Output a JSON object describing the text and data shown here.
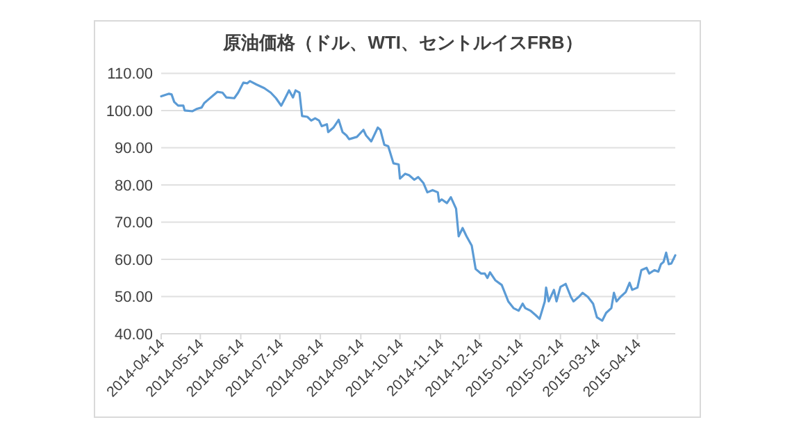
{
  "chart_data": {
    "type": "line",
    "title": "原油価格（ドル、WTI、セントルイスFRB）",
    "x": [
      "2014-04-14",
      "2014-04-20",
      "2014-04-22",
      "2014-04-24",
      "2014-04-27",
      "2014-05-01",
      "2014-05-02",
      "2014-05-08",
      "2014-05-11",
      "2014-05-15",
      "2014-05-17",
      "2014-05-20",
      "2014-05-24",
      "2014-05-27",
      "2014-05-31",
      "2014-06-03",
      "2014-06-09",
      "2014-06-12",
      "2014-06-16",
      "2014-06-19",
      "2014-06-21",
      "2014-06-26",
      "2014-07-02",
      "2014-07-07",
      "2014-07-11",
      "2014-07-15",
      "2014-07-18",
      "2014-07-21",
      "2014-07-24",
      "2014-07-26",
      "2014-07-29",
      "2014-07-31",
      "2014-08-04",
      "2014-08-07",
      "2014-08-10",
      "2014-08-13",
      "2014-08-15",
      "2014-08-19",
      "2014-08-20",
      "2014-08-24",
      "2014-08-28",
      "2014-08-31",
      "2014-09-03",
      "2014-09-05",
      "2014-09-11",
      "2014-09-16",
      "2014-09-18",
      "2014-09-22",
      "2014-09-27",
      "2014-09-29",
      "2014-10-02",
      "2014-10-05",
      "2014-10-09",
      "2014-10-13",
      "2014-10-14",
      "2014-10-18",
      "2014-10-21",
      "2014-10-25",
      "2014-10-28",
      "2014-11-01",
      "2014-11-04",
      "2014-11-08",
      "2014-11-12",
      "2014-11-13",
      "2014-11-15",
      "2014-11-19",
      "2014-11-22",
      "2014-11-26",
      "2014-11-28",
      "2014-12-01",
      "2014-12-04",
      "2014-12-08",
      "2014-12-11",
      "2014-12-15",
      "2014-12-18",
      "2014-12-20",
      "2014-12-22",
      "2014-12-26",
      "2014-12-31",
      "2015-01-05",
      "2015-01-09",
      "2015-01-13",
      "2015-01-16",
      "2015-01-18",
      "2015-01-22",
      "2015-01-26",
      "2015-01-29",
      "2015-02-02",
      "2015-02-03",
      "2015-02-05",
      "2015-02-09",
      "2015-02-11",
      "2015-02-14",
      "2015-02-18",
      "2015-02-22",
      "2015-02-24",
      "2015-02-28",
      "2015-03-03",
      "2015-03-07",
      "2015-03-11",
      "2015-03-14",
      "2015-03-18",
      "2015-03-21",
      "2015-03-25",
      "2015-03-27",
      "2015-03-29",
      "2015-04-01",
      "2015-04-05",
      "2015-04-08",
      "2015-04-10",
      "2015-04-14",
      "2015-04-17",
      "2015-04-21",
      "2015-04-23",
      "2015-04-27",
      "2015-04-30",
      "2015-05-02",
      "2015-05-04",
      "2015-05-06",
      "2015-05-08",
      "2015-05-10",
      "2015-05-13"
    ],
    "series": [
      {
        "color": "#5b9bd5",
        "values": [
          103.8,
          104.5,
          104.3,
          102.3,
          101.3,
          101.3,
          100,
          99.8,
          100.4,
          100.8,
          102,
          102.9,
          104.1,
          105,
          104.8,
          103.5,
          103.3,
          104.8,
          107.5,
          107.3,
          107.9,
          107,
          106,
          104.8,
          103.3,
          101.3,
          103.3,
          105.4,
          103.5,
          105.4,
          104.8,
          98.5,
          98.3,
          97.3,
          97.9,
          97.3,
          95.8,
          96.3,
          94.2,
          95.4,
          97.5,
          94.2,
          93.3,
          92.3,
          92.9,
          94.8,
          93.3,
          91.7,
          95.4,
          94.8,
          90.8,
          90.4,
          85.8,
          85.5,
          81.7,
          83,
          82.6,
          81.4,
          82.1,
          80.5,
          78,
          78.6,
          78,
          75.5,
          76.1,
          75.1,
          76.7,
          73.6,
          66.2,
          68.4,
          66.2,
          63.7,
          57.4,
          56.2,
          56.2,
          55,
          56.5,
          54.4,
          53.1,
          48.7,
          46.9,
          46.2,
          48.1,
          46.9,
          46.2,
          45,
          44,
          48.7,
          52.4,
          48.7,
          51.8,
          48.7,
          52.6,
          53.4,
          49.9,
          48.7,
          49.9,
          51,
          49.9,
          48.1,
          44.4,
          43.5,
          45.6,
          46.9,
          51,
          48.7,
          49.9,
          51.2,
          53.7,
          51.8,
          52.4,
          57.1,
          57.7,
          56.2,
          57.1,
          56.7,
          58.7,
          59.3,
          61.8,
          58.7,
          58.9,
          61.1
        ]
      }
    ],
    "xlim": [
      "2014-04-14",
      "2015-05-13"
    ],
    "xticks": [
      "2014-04-14",
      "2014-05-14",
      "2014-06-14",
      "2014-07-14",
      "2014-08-14",
      "2014-09-14",
      "2014-10-14",
      "2014-11-14",
      "2014-12-14",
      "2015-01-14",
      "2015-02-14",
      "2015-03-14",
      "2015-04-14"
    ],
    "ylim": [
      40,
      110
    ],
    "yticks": [
      {
        "value": 40,
        "label": "40.00"
      },
      {
        "value": 50,
        "label": "50.00"
      },
      {
        "value": 60,
        "label": "60.00"
      },
      {
        "value": 70,
        "label": "70.00"
      },
      {
        "value": 80,
        "label": "80.00"
      },
      {
        "value": 90,
        "label": "90.00"
      },
      {
        "value": 100,
        "label": "100.00"
      },
      {
        "value": 110,
        "label": "110.00"
      }
    ],
    "grid": "y",
    "marker": "none",
    "line_style": "solid"
  }
}
